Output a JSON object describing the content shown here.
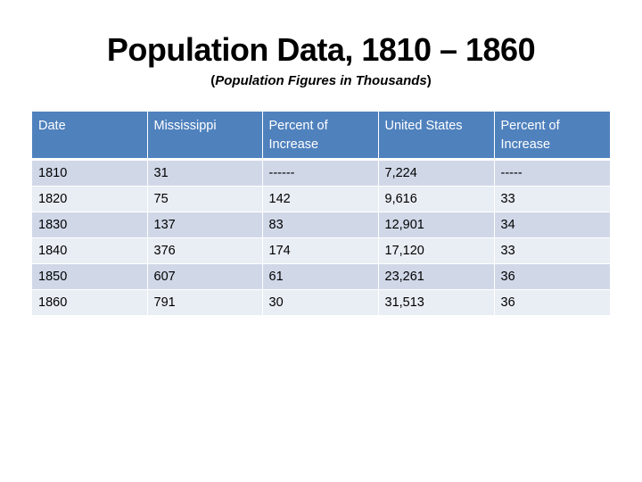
{
  "slide": {
    "title": "Population Data, 1810 – 1860",
    "subtitle_open": "(",
    "subtitle_italic": "Population Figures in Thousands",
    "subtitle_close": ")"
  },
  "table": {
    "headers": [
      "Date",
      "Mississippi",
      "Percent of Increase",
      "United States",
      "Percent of Increase"
    ],
    "rows": [
      [
        "1810",
        "31",
        "------",
        "7,224",
        "-----"
      ],
      [
        "1820",
        "75",
        "142",
        "9,616",
        "33"
      ],
      [
        "1830",
        "137",
        "83",
        "12,901",
        "34"
      ],
      [
        "1840",
        "376",
        "174",
        "17,120",
        "33"
      ],
      [
        "1850",
        "607",
        "61",
        "23,261",
        "36"
      ],
      [
        "1860",
        "791",
        "30",
        "31,513",
        "36"
      ]
    ]
  },
  "colors": {
    "header_bg": "#4F81BD",
    "row_odd_bg": "#D0D8E8",
    "row_even_bg": "#E9EDF4"
  }
}
